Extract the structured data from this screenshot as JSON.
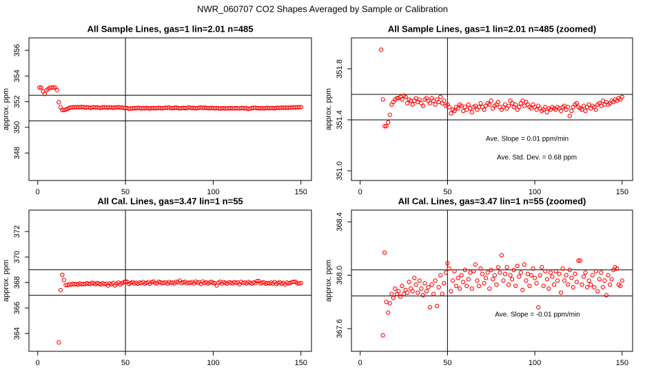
{
  "title": "NWR_060707  CO2 Shapes Averaged by Sample or Calibration",
  "chart_data": [
    {
      "type": "scatter",
      "title": "All Sample Lines, gas=1 lin=2.01 n=485",
      "y_label": "approx. ppm",
      "color": "#ff0000",
      "xlim": [
        -5,
        156
      ],
      "ylim": [
        345.86,
        356.97
      ],
      "xticks": [
        0,
        50,
        100,
        150
      ],
      "yticks": [
        348,
        350,
        352,
        354,
        356
      ],
      "hlines": [
        350.5,
        352.5
      ],
      "vline": 50,
      "x": [
        1,
        2,
        3,
        4,
        5,
        6,
        7,
        8,
        9,
        10,
        11,
        12,
        13,
        14,
        15,
        16,
        17,
        18,
        19,
        20,
        21,
        22,
        23,
        24,
        25,
        26,
        27,
        28,
        29,
        30,
        31,
        32,
        33,
        34,
        35,
        36,
        37,
        38,
        39,
        40,
        41,
        42,
        43,
        44,
        45,
        46,
        47,
        48,
        49,
        50,
        51,
        52,
        53,
        54,
        55,
        56,
        57,
        58,
        59,
        60,
        61,
        62,
        63,
        64,
        65,
        66,
        67,
        68,
        69,
        70,
        71,
        72,
        73,
        74,
        75,
        76,
        77,
        78,
        79,
        80,
        81,
        82,
        83,
        84,
        85,
        86,
        87,
        88,
        89,
        90,
        91,
        92,
        93,
        94,
        95,
        96,
        97,
        98,
        99,
        100,
        101,
        102,
        103,
        104,
        105,
        106,
        107,
        108,
        109,
        110,
        111,
        112,
        113,
        114,
        115,
        116,
        117,
        118,
        119,
        120,
        121,
        122,
        123,
        124,
        125,
        126,
        127,
        128,
        129,
        130,
        131,
        132,
        133,
        134,
        135,
        136,
        137,
        138,
        139,
        140,
        141,
        142,
        143,
        144,
        145,
        146,
        147,
        148,
        149,
        150
      ],
      "values": [
        353.1,
        353.1,
        352.8,
        352.6,
        352.9,
        353.0,
        353.1,
        353.1,
        353.1,
        353.1,
        352.9,
        351.95,
        351.56,
        351.35,
        351.35,
        351.38,
        351.44,
        351.52,
        351.54,
        351.56,
        351.57,
        351.57,
        351.58,
        351.56,
        351.59,
        351.58,
        351.53,
        351.56,
        351.55,
        351.52,
        351.55,
        351.57,
        351.54,
        351.56,
        351.53,
        351.51,
        351.56,
        351.57,
        351.55,
        351.53,
        351.57,
        351.55,
        351.52,
        351.56,
        351.54,
        351.58,
        351.53,
        351.55,
        351.51,
        351.52,
        351.5,
        351.45,
        351.48,
        351.47,
        351.5,
        351.49,
        351.52,
        351.51,
        351.47,
        351.5,
        351.48,
        351.52,
        351.49,
        351.46,
        351.5,
        351.51,
        351.48,
        351.5,
        351.53,
        351.5,
        351.48,
        351.51,
        351.53,
        351.52,
        351.55,
        351.49,
        351.51,
        351.52,
        351.54,
        351.5,
        351.48,
        351.5,
        351.52,
        351.49,
        351.51,
        351.55,
        351.53,
        351.5,
        351.52,
        351.48,
        351.5,
        351.53,
        351.55,
        351.51,
        351.54,
        351.52,
        351.5,
        351.49,
        351.52,
        351.5,
        351.48,
        351.51,
        351.49,
        351.47,
        351.48,
        351.5,
        351.46,
        351.49,
        351.48,
        351.5,
        351.49,
        351.48,
        351.5,
        351.49,
        351.47,
        351.5,
        351.51,
        351.48,
        351.5,
        351.43,
        351.47,
        351.5,
        351.52,
        351.53,
        351.5,
        351.49,
        351.48,
        351.51,
        351.47,
        351.5,
        351.52,
        351.49,
        351.51,
        351.5,
        351.48,
        351.52,
        351.53,
        351.51,
        351.55,
        351.52,
        351.54,
        351.52,
        351.53,
        351.55,
        351.54,
        351.56,
        351.55,
        351.57,
        351.56,
        351.58
      ]
    },
    {
      "type": "scatter",
      "title": "All Sample Lines, gas=1 lin=2.01 n=485 (zoomed)",
      "y_label": "approx. ppm",
      "color": "#ff0000",
      "xlim": [
        -5,
        156
      ],
      "ylim": [
        350.924,
        352.043
      ],
      "xticks": [
        0,
        50,
        100,
        150
      ],
      "yticks": [
        {
          "value": 351,
          "label": "351.0"
        },
        351.4,
        351.8
      ],
      "hlines": [
        351.4,
        351.6
      ],
      "vline": 50,
      "annotations": [
        "Ave. Slope =  0.01  ppm/min",
        "Ave. Std. Dev. =  0.68  ppm"
      ],
      "x": [
        12,
        13,
        14,
        15,
        16,
        17,
        18,
        19,
        20,
        21,
        22,
        23,
        24,
        25,
        26,
        27,
        28,
        29,
        30,
        31,
        32,
        33,
        34,
        35,
        36,
        37,
        38,
        39,
        40,
        41,
        42,
        43,
        44,
        45,
        46,
        47,
        48,
        49,
        50,
        51,
        52,
        53,
        54,
        55,
        56,
        57,
        58,
        59,
        60,
        61,
        62,
        63,
        64,
        65,
        66,
        67,
        68,
        69,
        70,
        71,
        72,
        73,
        74,
        75,
        76,
        77,
        78,
        79,
        80,
        81,
        82,
        83,
        84,
        85,
        86,
        87,
        88,
        89,
        90,
        91,
        92,
        93,
        94,
        95,
        96,
        97,
        98,
        99,
        100,
        101,
        102,
        103,
        104,
        105,
        106,
        107,
        108,
        109,
        110,
        111,
        112,
        113,
        114,
        115,
        116,
        117,
        118,
        119,
        120,
        121,
        122,
        123,
        124,
        125,
        126,
        127,
        128,
        129,
        130,
        131,
        132,
        133,
        134,
        135,
        136,
        137,
        138,
        139,
        140,
        141,
        142,
        143,
        144,
        145,
        146,
        147,
        148,
        149,
        150
      ],
      "values": [
        351.95,
        351.56,
        351.35,
        351.35,
        351.38,
        351.44,
        351.52,
        351.54,
        351.56,
        351.57,
        351.57,
        351.58,
        351.56,
        351.59,
        351.58,
        351.53,
        351.56,
        351.55,
        351.52,
        351.55,
        351.57,
        351.54,
        351.56,
        351.53,
        351.51,
        351.56,
        351.57,
        351.55,
        351.53,
        351.57,
        351.55,
        351.52,
        351.56,
        351.54,
        351.58,
        351.53,
        351.55,
        351.51,
        351.52,
        351.5,
        351.45,
        351.48,
        351.47,
        351.5,
        351.49,
        351.52,
        351.51,
        351.47,
        351.5,
        351.48,
        351.52,
        351.49,
        351.46,
        351.5,
        351.51,
        351.48,
        351.5,
        351.53,
        351.5,
        351.48,
        351.51,
        351.53,
        351.52,
        351.55,
        351.49,
        351.51,
        351.52,
        351.54,
        351.5,
        351.48,
        351.5,
        351.52,
        351.49,
        351.51,
        351.55,
        351.53,
        351.5,
        351.52,
        351.48,
        351.5,
        351.53,
        351.55,
        351.51,
        351.54,
        351.52,
        351.5,
        351.49,
        351.52,
        351.5,
        351.48,
        351.51,
        351.49,
        351.47,
        351.48,
        351.5,
        351.46,
        351.49,
        351.48,
        351.5,
        351.49,
        351.48,
        351.5,
        351.49,
        351.47,
        351.5,
        351.51,
        351.48,
        351.5,
        351.43,
        351.47,
        351.5,
        351.52,
        351.53,
        351.5,
        351.49,
        351.48,
        351.51,
        351.47,
        351.5,
        351.52,
        351.49,
        351.51,
        351.5,
        351.48,
        351.52,
        351.53,
        351.51,
        351.55,
        351.52,
        351.54,
        351.52,
        351.53,
        351.55,
        351.54,
        351.56,
        351.55,
        351.57,
        351.56,
        351.58
      ]
    },
    {
      "type": "scatter",
      "title": "All Cal. Lines, gas=3.47 lin=1 n=55",
      "y_label": "approx. ppm",
      "color": "#ff0000",
      "xlim": [
        -5,
        156
      ],
      "ylim": [
        362.6,
        373.68
      ],
      "xticks": [
        0,
        50,
        100,
        150
      ],
      "yticks": [
        364,
        366,
        368,
        370,
        372
      ],
      "hlines": [
        367,
        369
      ],
      "vline": 50,
      "x": [
        12,
        13,
        14,
        15,
        16,
        17,
        18,
        19,
        20,
        21,
        22,
        23,
        24,
        25,
        26,
        27,
        28,
        29,
        30,
        31,
        32,
        33,
        34,
        35,
        36,
        37,
        38,
        39,
        40,
        41,
        42,
        43,
        44,
        45,
        46,
        47,
        48,
        49,
        50,
        51,
        52,
        53,
        54,
        55,
        56,
        57,
        58,
        59,
        60,
        61,
        62,
        63,
        64,
        65,
        66,
        67,
        68,
        69,
        70,
        71,
        72,
        73,
        74,
        75,
        76,
        77,
        78,
        79,
        80,
        81,
        82,
        83,
        84,
        85,
        86,
        87,
        88,
        89,
        90,
        91,
        92,
        93,
        94,
        95,
        96,
        97,
        98,
        99,
        100,
        101,
        102,
        103,
        104,
        105,
        106,
        107,
        108,
        109,
        110,
        111,
        112,
        113,
        114,
        115,
        116,
        117,
        118,
        119,
        120,
        121,
        122,
        123,
        124,
        125,
        126,
        127,
        128,
        129,
        130,
        131,
        132,
        133,
        134,
        135,
        136,
        137,
        138,
        139,
        140,
        141,
        142,
        143,
        144,
        145,
        146,
        147,
        148,
        149,
        150
      ],
      "values": [
        363.3,
        367.4,
        368.6,
        368.2,
        367.8,
        367.79,
        367.86,
        367.83,
        367.9,
        367.86,
        367.88,
        367.84,
        367.92,
        367.86,
        367.89,
        367.87,
        367.95,
        367.9,
        367.88,
        367.98,
        367.93,
        367.87,
        367.96,
        367.9,
        367.85,
        367.94,
        367.88,
        367.91,
        367.76,
        367.93,
        367.86,
        367.96,
        367.77,
        367.91,
        368.0,
        367.86,
        367.94,
        368.02,
        368.09,
        368.05,
        367.88,
        367.96,
        368.03,
        367.92,
        367.98,
        367.9,
        368.0,
        367.95,
        368.04,
        367.92,
        367.97,
        368.02,
        367.9,
        368.03,
        368.08,
        367.96,
        367.92,
        368.05,
        368.01,
        367.94,
        367.98,
        368.02,
        367.9,
        368.04,
        367.97,
        368.0,
        367.93,
        368.06,
        368.02,
        368.15,
        367.96,
        368.01,
        368.06,
        367.93,
        368.0,
        367.97,
        368.04,
        367.92,
        368.07,
        367.99,
        368.02,
        367.89,
        368.08,
        367.96,
        368.01,
        367.92,
        368.0,
        368.05,
        367.98,
        367.94,
        367.76,
        368.0,
        368.06,
        367.92,
        368.03,
        367.97,
        367.9,
        368.02,
        367.99,
        367.93,
        368.03,
        367.96,
        368.01,
        367.87,
        368.05,
        367.96,
        368.0,
        367.93,
        368.04,
        367.98,
        367.91,
        368.01,
        367.95,
        368.11,
        368.11,
        367.93,
        367.99,
        368.02,
        367.91,
        367.96,
        367.93,
        368.0,
        367.91,
        368.03,
        367.88,
        367.97,
        368.02,
        367.91,
        367.96,
        367.85,
        368.0,
        367.93,
        367.97,
        368.04,
        368.06,
        368.05,
        367.93,
        367.92,
        367.96
      ]
    },
    {
      "type": "scatter",
      "title": "All Cal. Lines, gas=3.47 lin=1 n=55 (zoomed)",
      "y_label": "approx. ppm",
      "color": "#ff0000",
      "xlim": [
        -5,
        156
      ],
      "ylim": [
        367.43,
        368.488
      ],
      "xticks": [
        0,
        50,
        100,
        150
      ],
      "yticks": [
        367.6,
        {
          "value": 368,
          "label": "368.0"
        },
        368.4
      ],
      "hlines": [
        367.845,
        368.04
      ],
      "vline": 50,
      "annotations": [
        "Ave. Slope =  -0.01  ppm/min"
      ],
      "x": [
        13,
        14,
        15,
        16,
        17,
        18,
        19,
        20,
        21,
        22,
        23,
        24,
        25,
        26,
        27,
        28,
        29,
        30,
        31,
        32,
        33,
        34,
        35,
        36,
        37,
        38,
        39,
        40,
        41,
        42,
        43,
        44,
        45,
        46,
        47,
        48,
        49,
        50,
        51,
        52,
        53,
        54,
        55,
        56,
        57,
        58,
        59,
        60,
        61,
        62,
        63,
        64,
        65,
        66,
        67,
        68,
        69,
        70,
        71,
        72,
        73,
        74,
        75,
        76,
        77,
        78,
        79,
        80,
        81,
        82,
        83,
        84,
        85,
        86,
        87,
        88,
        89,
        90,
        91,
        92,
        93,
        94,
        95,
        96,
        97,
        98,
        99,
        100,
        101,
        102,
        103,
        104,
        105,
        106,
        107,
        108,
        109,
        110,
        111,
        112,
        113,
        114,
        115,
        116,
        117,
        118,
        119,
        120,
        121,
        122,
        123,
        124,
        125,
        126,
        127,
        128,
        129,
        130,
        131,
        132,
        133,
        134,
        135,
        136,
        137,
        138,
        139,
        140,
        141,
        142,
        143,
        144,
        145,
        146,
        147,
        148,
        149,
        150
      ],
      "values": [
        367.55,
        368.17,
        367.8,
        367.72,
        367.79,
        367.86,
        367.83,
        367.9,
        367.86,
        367.88,
        367.84,
        367.92,
        367.86,
        367.89,
        367.87,
        367.95,
        367.9,
        367.88,
        367.98,
        367.93,
        367.87,
        367.96,
        367.9,
        367.85,
        367.94,
        367.88,
        367.91,
        367.76,
        367.93,
        367.86,
        367.96,
        367.77,
        367.91,
        368.0,
        367.86,
        367.94,
        368.02,
        368.09,
        368.05,
        367.88,
        367.96,
        368.03,
        367.92,
        367.98,
        367.9,
        368.0,
        367.95,
        368.04,
        367.92,
        367.97,
        368.02,
        367.9,
        368.03,
        368.08,
        367.96,
        367.92,
        368.05,
        368.01,
        367.94,
        367.98,
        368.02,
        367.9,
        368.04,
        367.97,
        368.0,
        367.93,
        368.06,
        368.02,
        368.15,
        367.96,
        368.01,
        368.06,
        367.93,
        368.0,
        367.97,
        368.04,
        367.92,
        368.07,
        367.99,
        368.02,
        367.89,
        368.08,
        367.96,
        368.01,
        367.92,
        368.0,
        368.05,
        367.98,
        367.94,
        367.76,
        368.0,
        368.06,
        367.92,
        368.03,
        367.97,
        367.9,
        368.02,
        367.99,
        367.93,
        368.03,
        367.96,
        368.01,
        367.87,
        368.05,
        367.96,
        368.0,
        367.93,
        368.04,
        367.98,
        367.91,
        368.01,
        367.95,
        368.11,
        368.11,
        367.93,
        367.99,
        368.02,
        367.91,
        367.96,
        367.93,
        368.0,
        367.91,
        368.03,
        367.88,
        367.97,
        368.02,
        367.91,
        367.96,
        367.85,
        368.0,
        367.93,
        367.97,
        368.04,
        368.06,
        368.05,
        367.93,
        367.92,
        367.96
      ]
    }
  ]
}
